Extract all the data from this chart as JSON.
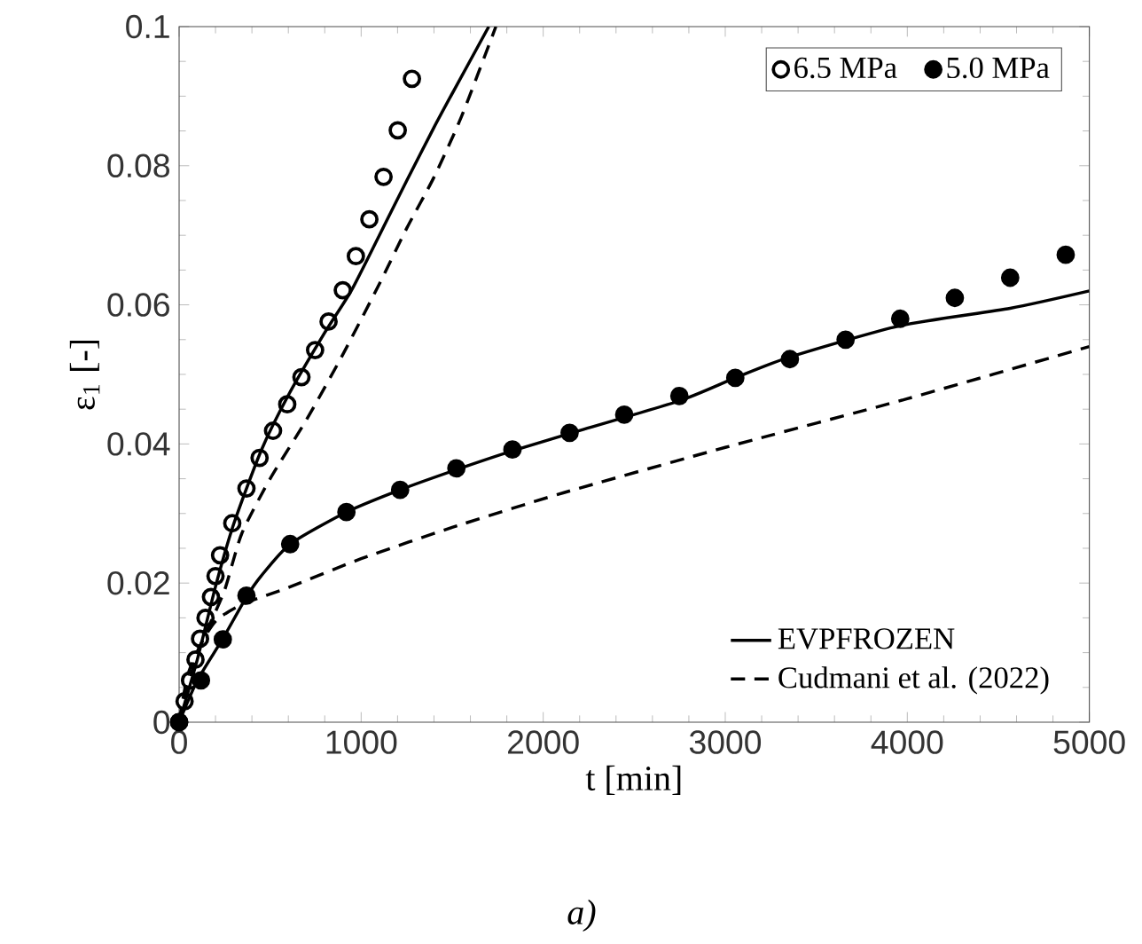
{
  "chart_data": {
    "type": "line",
    "xlabel": "t [min]",
    "ylabel": "ε$_{1}$ [-]",
    "annotations": [
      "*a)*"
    ],
    "xlim": [
      0,
      5000
    ],
    "ylim": [
      0,
      0.1
    ],
    "xticks": [
      0,
      1000,
      2000,
      3000,
      4000,
      5000
    ],
    "yticks": [
      0,
      0.02,
      0.04,
      0.06,
      0.08,
      0.1
    ],
    "grid": false,
    "legend": "right",
    "series": [
      {
        "name": "6.5 MPa",
        "type": "scatter",
        "marker": "circle",
        "color": "#000000",
        "x": [
          0,
          30,
          60,
          90,
          115,
          145,
          175,
          200,
          225,
          292,
          370,
          442,
          516,
          594,
          672,
          747,
          821,
          899,
          971,
          1045,
          1123,
          1201,
          1279
        ],
        "values": [
          0,
          0.003,
          0.006,
          0.009,
          0.012,
          0.015,
          0.018,
          0.021,
          0.024,
          0.0286,
          0.0336,
          0.038,
          0.0419,
          0.0457,
          0.0496,
          0.0535,
          0.0576,
          0.0621,
          0.067,
          0.0723,
          0.0784,
          0.0851,
          0.0925
        ]
      },
      {
        "name": "5.0 MPa",
        "type": "scatter",
        "marker": "circle",
        "color": "#000000",
        "x": [
          0,
          120,
          240,
          370,
          610,
          919,
          1214,
          1523,
          1831,
          2145,
          2445,
          2748,
          3055,
          3355,
          3661,
          3961,
          4261,
          4565,
          4870
        ],
        "values": [
          0,
          0.006,
          0.0119,
          0.0182,
          0.0256,
          0.0302,
          0.0334,
          0.0365,
          0.0392,
          0.0416,
          0.0442,
          0.0469,
          0.0495,
          0.0522,
          0.055,
          0.058,
          0.061,
          0.0639,
          0.0672
        ]
      },
      {
        "name": "EVPFROZEN",
        "type": "line",
        "line_style": "solid",
        "color": "#000000",
        "x": [
          0,
          100,
          200,
          300,
          450,
          600,
          800,
          945,
          1100,
          1253,
          1400,
          1513,
          1701
        ],
        "values": [
          0,
          0.009,
          0.0195,
          0.0285,
          0.039,
          0.047,
          0.056,
          0.062,
          0.07,
          0.078,
          0.0855,
          0.091,
          0.1
        ]
      },
      {
        "name": "Cudmani et al. (2022)",
        "type": "line",
        "line_style": "dashed",
        "color": "#000000",
        "x": [
          0,
          50,
          150,
          250,
          344,
          500,
          700,
          896,
          1100,
          1250,
          1399,
          1550,
          1740
        ],
        "values": [
          0,
          0.007,
          0.013,
          0.019,
          0.0271,
          0.035,
          0.0435,
          0.0527,
          0.063,
          0.071,
          0.0783,
          0.087,
          0.1
        ]
      },
      {
        "type": "line",
        "line_style": "solid",
        "color": "#000000",
        "x": [
          0,
          100,
          240,
          370,
          450,
          610,
          919,
          1214,
          1523,
          1831,
          2145,
          2748,
          3055,
          3355,
          3961,
          4565,
          5000
        ],
        "values": [
          0,
          0.006,
          0.012,
          0.018,
          0.021,
          0.0256,
          0.0302,
          0.0334,
          0.0363,
          0.039,
          0.0415,
          0.0462,
          0.0495,
          0.0525,
          0.057,
          0.0595,
          0.062
        ]
      },
      {
        "type": "line",
        "line_style": "dashed",
        "color": "#000000",
        "x": [
          0,
          100,
          200,
          344,
          604,
          1000,
          1500,
          2114,
          3000,
          4000,
          5000
        ],
        "values": [
          0,
          0.01,
          0.0145,
          0.0169,
          0.0194,
          0.0235,
          0.028,
          0.033,
          0.0395,
          0.0465,
          0.054
        ]
      }
    ]
  }
}
